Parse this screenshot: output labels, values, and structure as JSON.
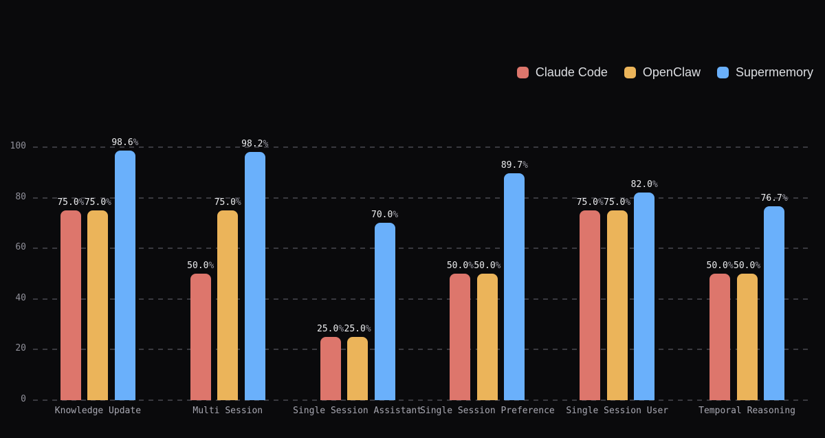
{
  "chart_data": {
    "type": "bar",
    "title": "",
    "categories": [
      "Knowledge Update",
      "Multi Session",
      "Single Session Assistant",
      "Single Session Preference",
      "Single Session User",
      "Temporal Reasoning"
    ],
    "series": [
      {
        "name": "Claude Code",
        "color": "#dd766c",
        "values": [
          75.0,
          50.0,
          25.0,
          50.0,
          75.0,
          50.0
        ]
      },
      {
        "name": "OpenClaw",
        "color": "#ebb45a",
        "values": [
          75.0,
          75.0,
          25.0,
          50.0,
          75.0,
          50.0
        ]
      },
      {
        "name": "Supermemory",
        "color": "#6ab0fb",
        "values": [
          98.6,
          98.2,
          70.0,
          89.7,
          82.0,
          76.7
        ]
      }
    ],
    "value_suffix": "%",
    "value_decimals": 1,
    "yticks": [
      0,
      20,
      40,
      60,
      80,
      100
    ],
    "ylim": [
      0,
      100
    ],
    "xlabel": "",
    "ylabel": "",
    "grid": "horizontal-dashed",
    "legend_position": "top-right",
    "style": {
      "background": "#0a0a0c",
      "grid_color": "#3a3a40",
      "ytick_color": "#90909a",
      "xtick_color": "#a8a8b2",
      "value_color": "#ecedef",
      "value_suffix_color": "#9a9aa4",
      "legend_text_color": "#dcdee2"
    }
  }
}
